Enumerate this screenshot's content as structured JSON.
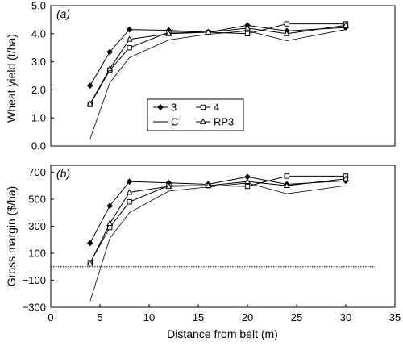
{
  "chart_data": [
    {
      "type": "line",
      "panel_label": "(a)",
      "ylabel": "Wheat yield (t/ha)",
      "xlabel": "",
      "xlim": [
        0,
        35
      ],
      "ylim": [
        0.0,
        5.0
      ],
      "yticks": [
        "0.0",
        "1.0",
        "2.0",
        "3.0",
        "4.0",
        "5.0"
      ],
      "grid": false,
      "legend": "middle-left",
      "x": [
        4,
        6,
        8,
        12,
        16,
        20,
        24,
        30
      ],
      "series": [
        {
          "name": "3",
          "marker": "diamond",
          "values": [
            2.15,
            3.35,
            4.15,
            4.12,
            4.05,
            4.3,
            4.1,
            4.22
          ]
        },
        {
          "name": "4",
          "marker": "square",
          "values": [
            1.48,
            2.7,
            3.5,
            4.05,
            4.05,
            4.0,
            4.35,
            4.35
          ]
        },
        {
          "name": "C",
          "marker": "none",
          "values": [
            0.25,
            2.25,
            3.15,
            3.78,
            3.98,
            4.1,
            3.75,
            4.15
          ]
        },
        {
          "name": "RP3",
          "marker": "triangle",
          "values": [
            1.5,
            2.75,
            3.8,
            4.0,
            4.05,
            4.2,
            4.0,
            4.3
          ]
        }
      ]
    },
    {
      "type": "line",
      "panel_label": "(b)",
      "ylabel": "Gross margin ($/ha)",
      "xlabel": "Distance from belt (m)",
      "xlim": [
        0,
        35
      ],
      "ylim": [
        -300,
        750
      ],
      "yticks": [
        "700",
        "500",
        "300",
        "100",
        "−100",
        "−300"
      ],
      "ytick_values": [
        700,
        500,
        300,
        100,
        -100,
        -300
      ],
      "xticks": [
        0,
        5,
        10,
        15,
        20,
        25,
        30,
        35
      ],
      "grid": false,
      "reference_line": {
        "y": 0,
        "xmax": 33,
        "style": "dotted"
      },
      "x": [
        4,
        6,
        8,
        12,
        16,
        20,
        24,
        30
      ],
      "series": [
        {
          "name": "3",
          "marker": "diamond",
          "values": [
            175,
            450,
            630,
            620,
            610,
            665,
            610,
            635
          ]
        },
        {
          "name": "4",
          "marker": "square",
          "values": [
            30,
            290,
            480,
            600,
            600,
            595,
            670,
            670
          ]
        },
        {
          "name": "C",
          "marker": "none",
          "values": [
            -255,
            210,
            400,
            560,
            590,
            620,
            540,
            600
          ]
        },
        {
          "name": "RP3",
          "marker": "triangle",
          "values": [
            25,
            320,
            550,
            595,
            600,
            630,
            600,
            650
          ]
        }
      ]
    }
  ]
}
